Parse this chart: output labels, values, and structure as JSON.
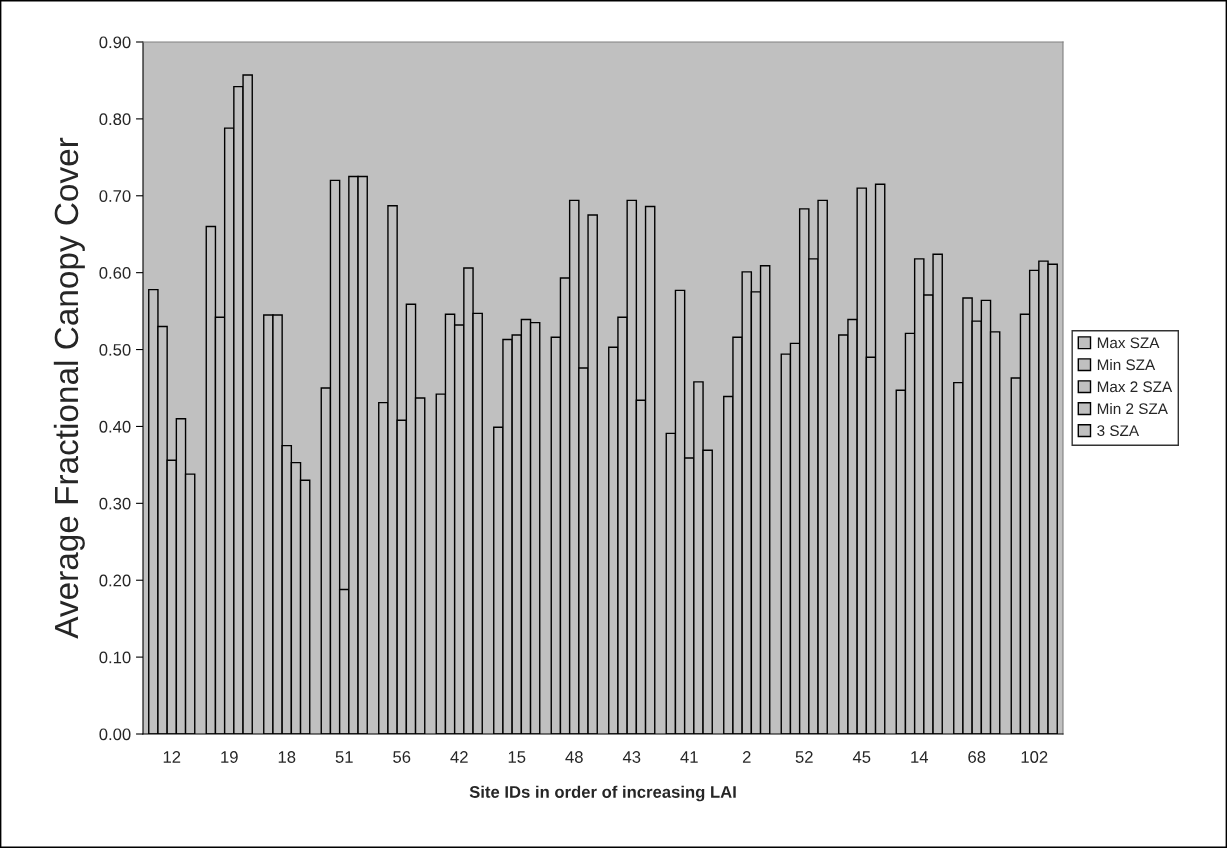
{
  "chart_data": {
    "type": "bar",
    "xlabel": "Site IDs in order of increasing LAI",
    "ylabel": "Average Fractional Canopy Cover",
    "categories": [
      "12",
      "19",
      "18",
      "51",
      "56",
      "42",
      "15",
      "48",
      "43",
      "41",
      "2",
      "52",
      "45",
      "14",
      "68",
      "102"
    ],
    "series": [
      {
        "name": "Max SZA",
        "color": "#c0c0c0",
        "values": [
          0.578,
          0.66,
          0.545,
          0.45,
          0.431,
          0.442,
          0.399,
          0.516,
          0.503,
          0.391,
          0.439,
          0.494,
          0.519,
          0.447,
          0.457,
          0.463
        ]
      },
      {
        "name": "Min SZA",
        "color": "#c0c0c0",
        "values": [
          0.53,
          0.542,
          0.545,
          0.72,
          0.687,
          0.546,
          0.513,
          0.593,
          0.542,
          0.577,
          0.516,
          0.508,
          0.539,
          0.521,
          0.567,
          0.546
        ]
      },
      {
        "name": "Max 2 SZA",
        "color": "#c0c0c0",
        "values": [
          0.356,
          0.788,
          0.375,
          0.188,
          0.408,
          0.532,
          0.519,
          0.694,
          0.694,
          0.359,
          0.601,
          0.683,
          0.71,
          0.618,
          0.537,
          0.603
        ]
      },
      {
        "name": "Min 2 SZA",
        "color": "#c0c0c0",
        "values": [
          0.41,
          0.842,
          0.353,
          0.725,
          0.559,
          0.606,
          0.539,
          0.476,
          0.434,
          0.458,
          0.575,
          0.618,
          0.49,
          0.571,
          0.564,
          0.615
        ]
      },
      {
        "name": "3 SZA",
        "color": "#c0c0c0",
        "values": [
          0.338,
          0.857,
          0.33,
          0.725,
          0.437,
          0.547,
          0.535,
          0.675,
          0.686,
          0.369,
          0.609,
          0.694,
          0.715,
          0.624,
          0.523,
          0.611
        ]
      }
    ],
    "ylim": [
      0,
      0.9
    ],
    "yticks": [
      {
        "value": 0,
        "label": "0.00"
      },
      {
        "value": 0.1,
        "label": "0.10"
      },
      {
        "value": 0.2,
        "label": "0.20"
      },
      {
        "value": 0.3,
        "label": "0.30"
      },
      {
        "value": 0.4,
        "label": "0.40"
      },
      {
        "value": 0.5,
        "label": "0.50"
      },
      {
        "value": 0.6,
        "label": "0.60"
      },
      {
        "value": 0.7,
        "label": "0.70"
      },
      {
        "value": 0.8,
        "label": "0.80"
      },
      {
        "value": 0.9,
        "label": "0.90"
      }
    ],
    "legend": "right"
  }
}
